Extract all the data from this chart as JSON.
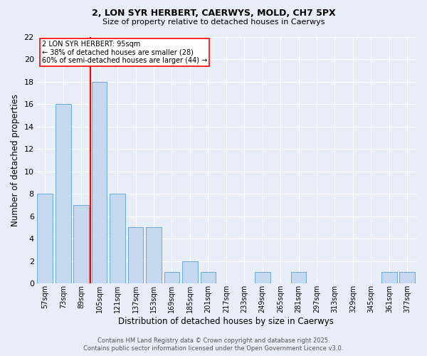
{
  "title1": "2, LON SYR HERBERT, CAERWYS, MOLD, CH7 5PX",
  "title2": "Size of property relative to detached houses in Caerwys",
  "xlabel": "Distribution of detached houses by size in Caerwys",
  "ylabel": "Number of detached properties",
  "categories": [
    "57sqm",
    "73sqm",
    "89sqm",
    "105sqm",
    "121sqm",
    "137sqm",
    "153sqm",
    "169sqm",
    "185sqm",
    "201sqm",
    "217sqm",
    "233sqm",
    "249sqm",
    "265sqm",
    "281sqm",
    "297sqm",
    "313sqm",
    "329sqm",
    "345sqm",
    "361sqm",
    "377sqm"
  ],
  "values": [
    8,
    16,
    7,
    18,
    8,
    5,
    5,
    1,
    2,
    1,
    0,
    0,
    1,
    0,
    1,
    0,
    0,
    0,
    0,
    1,
    1
  ],
  "bar_color": "#c5d8f0",
  "bar_edge_color": "#6aaad4",
  "red_line_x": 2.5,
  "annotation_title": "2 LON SYR HERBERT: 95sqm",
  "annotation_line2": "← 38% of detached houses are smaller (28)",
  "annotation_line3": "60% of semi-detached houses are larger (44) →",
  "ylim": [
    0,
    22
  ],
  "yticks": [
    0,
    2,
    4,
    6,
    8,
    10,
    12,
    14,
    16,
    18,
    20,
    22
  ],
  "bg_color": "#e8eef7",
  "grid_color": "#ffffff",
  "footer1": "Contains HM Land Registry data © Crown copyright and database right 2025.",
  "footer2": "Contains public sector information licensed under the Open Government Licence v3.0."
}
